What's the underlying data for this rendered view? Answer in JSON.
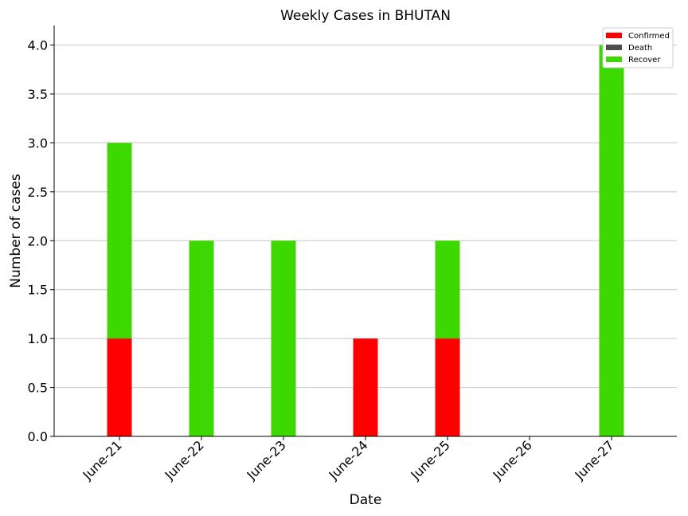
{
  "chart_data": {
    "type": "bar",
    "title": "Weekly Cases in BHUTAN",
    "xlabel": "Date",
    "ylabel": "Number of cases",
    "categories": [
      "June-21",
      "June-22",
      "June-23",
      "June-24",
      "June-25",
      "June-26",
      "June-27"
    ],
    "series": [
      {
        "name": "Confirmed",
        "color": "#ff0000",
        "values": [
          1,
          0,
          0,
          1,
          1,
          0,
          0
        ]
      },
      {
        "name": "Death",
        "color": "#4d4d4d",
        "values": [
          0,
          0,
          0,
          0,
          0,
          0,
          0
        ]
      },
      {
        "name": "Recover",
        "color": "#3dd800",
        "values": [
          3,
          2,
          2,
          0,
          2,
          0,
          4
        ]
      }
    ],
    "ylim": [
      0,
      4.2
    ],
    "yticks": [
      "0.0",
      "0.5",
      "1.0",
      "1.5",
      "2.0",
      "2.5",
      "3.0",
      "3.5",
      "4.0"
    ],
    "grid": "horizontal",
    "legend_position": "top-right"
  }
}
